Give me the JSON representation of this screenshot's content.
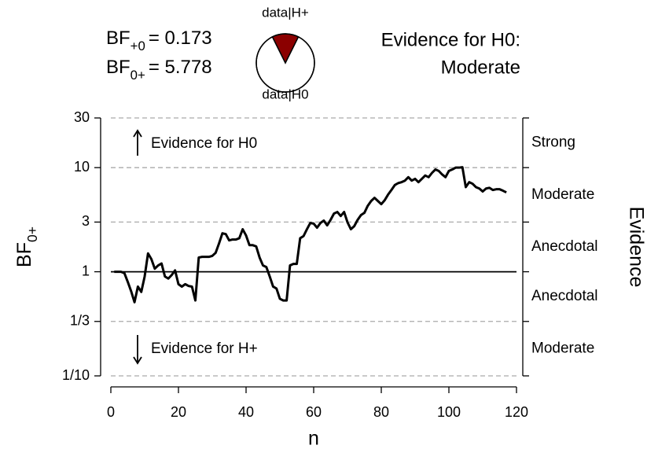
{
  "chart_data": {
    "type": "line",
    "bf_labels": [
      {
        "base": "BF",
        "sub": "+0",
        "rest": "= 0.173"
      },
      {
        "base": "BF",
        "sub": "0+",
        "rest": "= 5.778"
      }
    ],
    "pie": {
      "labels": [
        "data|H+",
        "data|H0"
      ],
      "values": [
        0.147,
        0.853
      ],
      "colors": [
        "#8b0000",
        "#ffffff"
      ]
    },
    "evidence_heading": [
      "Evidence for H0:",
      "Moderate"
    ],
    "annotations": [
      "Evidence for H0",
      "Evidence for H+"
    ],
    "ylabel": {
      "base": "BF",
      "sub": "0+"
    },
    "xlabel": "n",
    "y2label": "Evidence",
    "evidence_labels": [
      "Strong",
      "Moderate",
      "Anecdotal",
      "Anecdotal",
      "Moderate"
    ],
    "log_y": true,
    "xlim": [
      0,
      120
    ],
    "xticks": [
      0,
      20,
      40,
      60,
      80,
      100,
      120
    ],
    "ylim": [
      0.1,
      30
    ],
    "yticks": [
      30,
      10,
      3,
      1,
      {
        "value": 0.3333,
        "label": "1/3"
      },
      {
        "value": 0.1,
        "label": "1/10"
      }
    ],
    "reference_line": 1,
    "color": "#000000",
    "x": [
      1,
      2,
      3,
      4,
      5,
      6,
      7,
      8,
      9,
      10,
      11,
      12,
      13,
      14,
      15,
      16,
      17,
      18,
      19,
      20,
      21,
      22,
      23,
      24,
      25,
      26,
      27,
      28,
      29,
      30,
      31,
      32,
      33,
      34,
      35,
      36,
      37,
      38,
      39,
      40,
      41,
      42,
      43,
      44,
      45,
      46,
      47,
      48,
      49,
      50,
      51,
      52,
      53,
      54,
      55,
      56,
      57,
      58,
      59,
      60,
      61,
      62,
      63,
      64,
      65,
      66,
      67,
      68,
      69,
      70,
      71,
      72,
      73,
      74,
      75,
      76,
      77,
      78,
      79,
      80,
      81,
      82,
      83,
      84,
      85,
      86,
      87,
      88,
      89,
      90,
      91,
      92,
      93,
      94,
      95,
      96,
      97,
      98,
      99,
      100,
      101,
      102,
      103,
      104,
      105,
      106,
      107,
      108,
      109,
      110,
      111,
      112,
      113,
      114,
      115,
      116,
      117
    ],
    "values": [
      1.0,
      1.0,
      1.0,
      0.97,
      0.8,
      0.65,
      0.51,
      0.72,
      0.64,
      0.9,
      1.5,
      1.32,
      1.07,
      1.15,
      1.2,
      0.9,
      0.86,
      0.93,
      1.03,
      0.76,
      0.72,
      0.76,
      0.73,
      0.72,
      0.53,
      1.37,
      1.39,
      1.39,
      1.39,
      1.42,
      1.52,
      1.87,
      2.34,
      2.3,
      2.0,
      2.04,
      2.04,
      2.1,
      2.56,
      2.23,
      1.8,
      1.8,
      1.75,
      1.37,
      1.15,
      1.11,
      0.9,
      0.72,
      0.69,
      0.55,
      0.53,
      0.53,
      1.15,
      1.19,
      1.19,
      2.1,
      2.2,
      2.56,
      2.94,
      2.9,
      2.65,
      2.94,
      3.1,
      2.79,
      3.15,
      3.62,
      3.75,
      3.43,
      3.75,
      2.99,
      2.56,
      2.74,
      3.15,
      3.5,
      3.68,
      4.3,
      4.78,
      5.13,
      4.78,
      4.46,
      4.86,
      5.5,
      6.1,
      6.8,
      7.1,
      7.25,
      7.5,
      8.1,
      7.5,
      7.8,
      7.25,
      7.8,
      8.4,
      8.1,
      8.9,
      9.6,
      9.3,
      8.6,
      8.1,
      9.3,
      9.6,
      10.0,
      10.0,
      10.1,
      6.5,
      7.25,
      7.0,
      6.5,
      6.3,
      5.9,
      6.3,
      6.4,
      6.1,
      6.2,
      6.2,
      6.0,
      5.778
    ]
  }
}
